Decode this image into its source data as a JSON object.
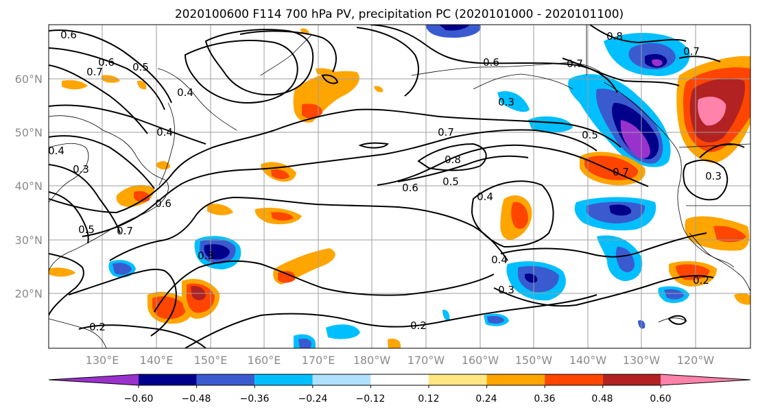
{
  "title": "2020100600 F114 700 hPa PV, precipitation PC (2020101000 - 2020101100)",
  "map": {
    "lat_labels": [
      "60°N",
      "50°N",
      "40°N",
      "30°N",
      "20°N"
    ],
    "lon_labels": [
      "130°E",
      "140°E",
      "150°E",
      "160°E",
      "170°E",
      "180°W",
      "170°W",
      "160°W",
      "150°W",
      "140°W",
      "130°W",
      "120°W"
    ],
    "contour_labels": [
      "0.6",
      "0.6",
      "0.5",
      "0.7",
      "0.4",
      "0.4",
      "0.4",
      "0.3",
      "0.5",
      "0.6",
      "0.7",
      "0.6",
      "0.7",
      "0.3",
      "0.7",
      "0.8",
      "0.6",
      "0.5",
      "0.5",
      "0.7",
      "0.4",
      "0.4",
      "0.3",
      "0.2",
      "0.2",
      "0.2",
      "0.8",
      "0.7",
      "0.3",
      "0.3"
    ]
  },
  "colorbar": {
    "tick_labels": [
      "−0.60",
      "−0.48",
      "−0.36",
      "−0.24",
      "−0.12",
      "0.12",
      "0.24",
      "0.36",
      "0.48",
      "0.60"
    ],
    "colors": [
      "#9932cc",
      "#00008b",
      "#3a5bd0",
      "#00bfff",
      "#b0e0ff",
      "#ffffff",
      "#ffe680",
      "#ffa500",
      "#ff4500",
      "#b22222",
      "#ff82ab"
    ]
  }
}
